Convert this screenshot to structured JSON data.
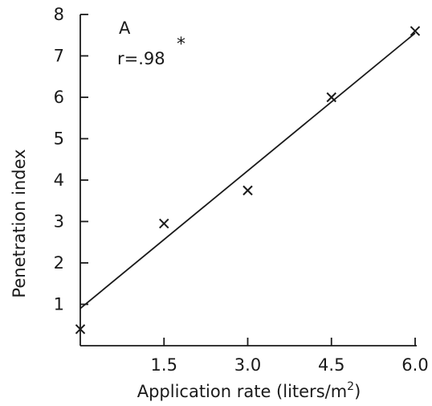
{
  "chart_data": {
    "type": "scatter",
    "panel_label": "A",
    "annotation": "r=.98",
    "annotation_mark": "*",
    "xlabel": "Application rate (liters/m",
    "xlabel_superscript": "2",
    "xlabel_suffix": ")",
    "ylabel": "Penetration index",
    "xlim": [
      0,
      6.0
    ],
    "ylim": [
      0,
      8
    ],
    "x_ticks": [
      1.5,
      3.0,
      4.5,
      6.0
    ],
    "x_tick_labels": [
      "1.5",
      "3.0",
      "4.5",
      "6.0"
    ],
    "y_ticks": [
      1,
      2,
      3,
      4,
      5,
      6,
      7,
      8
    ],
    "y_tick_labels": [
      "1",
      "2",
      "3",
      "4",
      "5",
      "6",
      "7",
      "8"
    ],
    "marker": "x",
    "points": [
      {
        "x": 0,
        "y": 0.4
      },
      {
        "x": 1.5,
        "y": 2.95
      },
      {
        "x": 3.0,
        "y": 3.75
      },
      {
        "x": 4.5,
        "y": 6.0
      },
      {
        "x": 6.0,
        "y": 7.6
      }
    ],
    "fit_line": {
      "x": [
        0,
        6.0
      ],
      "y": [
        0.9,
        7.55
      ]
    },
    "grid": false,
    "legend": "none"
  }
}
